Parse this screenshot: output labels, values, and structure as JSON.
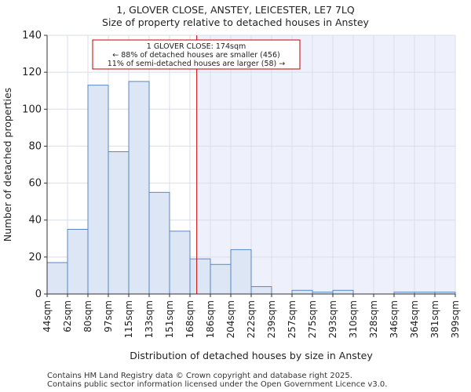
{
  "header": {
    "title": "1, GLOVER CLOSE, ANSTEY, LEICESTER, LE7 7LQ",
    "subtitle": "Size of property relative to detached houses in Anstey"
  },
  "footer": {
    "line1": "Contains HM Land Registry data © Crown copyright and database right 2025.",
    "line2": "Contains public sector information licensed under the Open Government Licence v3.0."
  },
  "colors": {
    "bar_fill": "#dce6f4",
    "bar_stroke": "#5b87c2",
    "highlight_bg": "#eef1fb",
    "marker": "#c00000",
    "grid": "#d9dee8"
  },
  "chart_data": {
    "type": "bar",
    "title": "Size of property relative to detached houses in Anstey",
    "xlabel": "Distribution of detached houses by size in Anstey",
    "ylabel": "Number of detached properties",
    "ylim": [
      0,
      140
    ],
    "yticks": [
      0,
      20,
      40,
      60,
      80,
      100,
      120,
      140
    ],
    "bin_edges": [
      44,
      62,
      80,
      97,
      115,
      133,
      151,
      168,
      186,
      204,
      222,
      239,
      257,
      275,
      293,
      310,
      328,
      346,
      364,
      381,
      399
    ],
    "tick_labels": [
      "44sqm",
      "62sqm",
      "80sqm",
      "97sqm",
      "115sqm",
      "133sqm",
      "151sqm",
      "168sqm",
      "186sqm",
      "204sqm",
      "222sqm",
      "239sqm",
      "257sqm",
      "275sqm",
      "293sqm",
      "310sqm",
      "328sqm",
      "346sqm",
      "364sqm",
      "381sqm",
      "399sqm"
    ],
    "values": [
      17,
      35,
      113,
      77,
      115,
      55,
      34,
      19,
      16,
      24,
      4,
      0,
      2,
      1,
      2,
      0,
      0,
      1,
      1,
      1
    ],
    "marker": {
      "value": 174,
      "label_lines": [
        "1 GLOVER CLOSE: 174sqm",
        "← 88% of detached houses are smaller (456)",
        "11% of semi-detached houses are larger (58) →"
      ]
    },
    "grid": true
  }
}
